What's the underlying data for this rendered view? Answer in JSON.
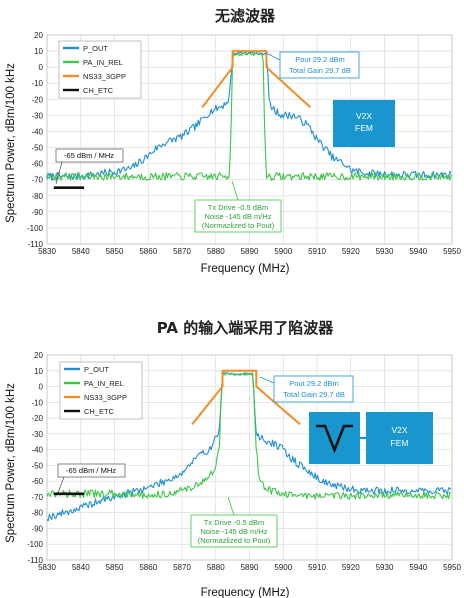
{
  "colors": {
    "p_out": "#1f8fd2",
    "pa_in_rel": "#3fc44a",
    "ns33": "#f28c28",
    "ch_etc": "#111111",
    "fem_box": "#1a96cf",
    "grid": "#d7d7d7"
  },
  "chart_data": [
    {
      "type": "line",
      "title": "无滤波器",
      "xlabel": "Frequency (MHz)",
      "ylabel": "Spectrum Power, dBm/100 kHz",
      "xlim": [
        5830,
        5950
      ],
      "ylim": [
        -110,
        20
      ],
      "xticks": [
        "5830",
        "5840",
        "5850",
        "5860",
        "5870",
        "5880",
        "5890",
        "5900",
        "5910",
        "5920",
        "5930",
        "5940",
        "5950"
      ],
      "yticks": [
        "20",
        "10",
        "0",
        "-10",
        "-20",
        "-30",
        "-40",
        "-50",
        "-60",
        "-70",
        "-80",
        "-90",
        "-100",
        "-110"
      ],
      "legend": [
        "P_OUT",
        "PA_IN_REL",
        "NS33_3GPP",
        "CH_ETC"
      ],
      "legend_position": "top-left",
      "grid": true,
      "series": [
        {
          "name": "P_OUT",
          "x": [
            5830,
            5840,
            5850,
            5855,
            5860,
            5862,
            5865,
            5870,
            5872,
            5875,
            5878,
            5880,
            5882,
            5884,
            5885,
            5887,
            5893,
            5895,
            5896,
            5898,
            5900,
            5903,
            5906,
            5908,
            5910,
            5913,
            5915,
            5918,
            5920,
            5925,
            5935,
            5950
          ],
          "y": [
            -68,
            -68,
            -65,
            -63,
            -55,
            -51,
            -47,
            -43,
            -40,
            -35,
            -28,
            -26,
            -24,
            -20,
            8,
            9,
            9,
            8,
            -24,
            -28,
            -30,
            -30,
            -34,
            -38,
            -45,
            -52,
            -57,
            -60,
            -64,
            -66,
            -67,
            -67
          ]
        },
        {
          "name": "PA_IN_REL",
          "x": [
            5830,
            5884,
            5884.5,
            5885,
            5894,
            5894.5,
            5895,
            5950
          ],
          "y": [
            -68,
            -68,
            -40,
            8,
            8,
            -40,
            -68,
            -68
          ]
        },
        {
          "name": "NS33_3GPP",
          "x": [
            5876,
            5885,
            5885,
            5895,
            5895,
            5908
          ],
          "y": [
            -25,
            0,
            10,
            10,
            0,
            -25
          ]
        },
        {
          "name": "CH_ETC",
          "x": [
            5832,
            5841
          ],
          "y": [
            -75,
            -75
          ]
        }
      ],
      "annotations": {
        "pout_1": "Pout 29.2 dBm",
        "pout_2": "Total Gain 29.7 dB",
        "mask_label": "-65 dBm / MHz",
        "tx_1": "Tx Drive -0.5 dBm",
        "tx_2": "Noise -145 dB m/Hz",
        "tx_3": "(Normazlized to Pout)",
        "fem_1": "V2X",
        "fem_2": "FEM"
      }
    },
    {
      "type": "line",
      "title": "PA 的输入端采用了陷波器",
      "xlabel": "Frequency (MHz)",
      "ylabel": "Spectrum Power, dBm/100 kHz",
      "xlim": [
        5830,
        5950
      ],
      "ylim": [
        -110,
        20
      ],
      "xticks": [
        "5830",
        "5840",
        "5850",
        "5860",
        "5870",
        "5880",
        "5890",
        "5900",
        "5910",
        "5920",
        "5930",
        "5940",
        "5950"
      ],
      "yticks": [
        "20",
        "10",
        "0",
        "-10",
        "-20",
        "-30",
        "-40",
        "-50",
        "-60",
        "-70",
        "-80",
        "-90",
        "-100",
        "-110"
      ],
      "legend": [
        "P_OUT",
        "PA_IN_REL",
        "NS33_3GPP",
        "CH_ETC"
      ],
      "legend_position": "top-left",
      "grid": true,
      "series": [
        {
          "name": "P_OUT",
          "x": [
            5830,
            5835,
            5840,
            5845,
            5850,
            5855,
            5860,
            5865,
            5870,
            5873,
            5875,
            5878,
            5880,
            5881,
            5882,
            5891,
            5892,
            5893,
            5895,
            5898,
            5900,
            5902,
            5905,
            5910,
            5915,
            5920,
            5925,
            5935,
            5950
          ],
          "y": [
            -83,
            -80,
            -77,
            -73,
            -70,
            -67,
            -64,
            -60,
            -55,
            -48,
            -44,
            -40,
            -33,
            -29,
            8,
            8,
            -30,
            -32,
            -35,
            -37,
            -40,
            -45,
            -50,
            -58,
            -63,
            -65,
            -66,
            -66,
            -66
          ]
        },
        {
          "name": "PA_IN_REL",
          "x": [
            5830,
            5855,
            5860,
            5865,
            5870,
            5875,
            5878,
            5880,
            5881,
            5882,
            5891,
            5892,
            5893,
            5895,
            5900,
            5905,
            5910,
            5920,
            5950
          ],
          "y": [
            -68,
            -68,
            -69,
            -68,
            -66,
            -62,
            -58,
            -50,
            -40,
            8,
            8,
            -40,
            -60,
            -65,
            -68,
            -69,
            -69,
            -69,
            -69
          ]
        },
        {
          "name": "NS33_3GPP",
          "x": [
            5873,
            5882,
            5882,
            5892,
            5892,
            5905
          ],
          "y": [
            -24,
            0,
            10,
            10,
            0,
            -24
          ]
        },
        {
          "name": "CH_ETC",
          "x": [
            5832,
            5841
          ],
          "y": [
            -68,
            -68
          ]
        }
      ],
      "annotations": {
        "pout_1": "Pout 29.2 dBm",
        "pout_2": "Total Gain 29.7 dB",
        "mask_label": "-65 dBm / MHz",
        "tx_1": "Tx Drive -0.5 dBm",
        "tx_2": "Noise -145 dB m/Hz",
        "tx_3": "(Normazlized to Pout)",
        "fem_1": "V2X",
        "fem_2": "FEM"
      }
    }
  ]
}
